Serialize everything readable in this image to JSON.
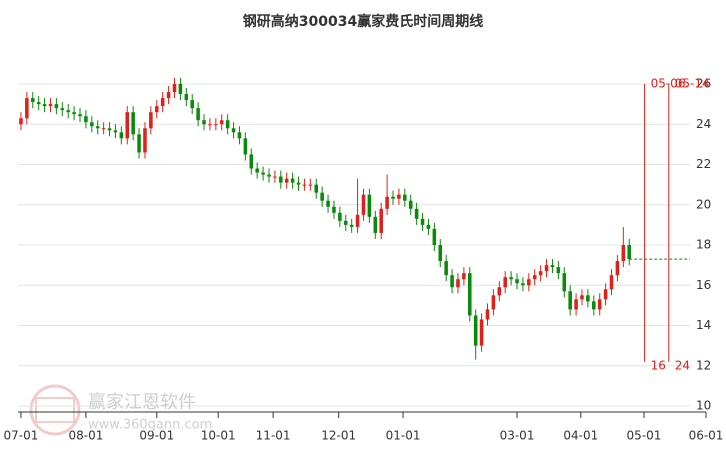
{
  "chart_data": {
    "type": "candlestick",
    "title": "钢研高纳300034赢家费氏时间周期线",
    "up_color": "#e0201a",
    "down_color": "#0a8a0a",
    "grid": true,
    "xlim": [
      -0.5,
      116
    ],
    "xticks": [
      {
        "value": 0,
        "label": "07-01"
      },
      {
        "value": 11,
        "label": "08-01"
      },
      {
        "value": 23,
        "label": "09-01"
      },
      {
        "value": 33.4,
        "label": "10-01"
      },
      {
        "value": 42.7,
        "label": "11-01"
      },
      {
        "value": 53.8,
        "label": "12-01"
      },
      {
        "value": 64.7,
        "label": "01-01"
      },
      {
        "value": 84,
        "label": "03-01"
      },
      {
        "value": 94.8,
        "label": "04-01"
      },
      {
        "value": 105.5,
        "label": "05-01"
      },
      {
        "value": 116,
        "label": "06-01"
      }
    ],
    "ylim": [
      10,
      26
    ],
    "yticks": [
      10,
      12,
      14,
      16,
      18,
      20,
      22,
      24,
      26
    ],
    "open": [
      24.0,
      24.3,
      25.3,
      25.1,
      25.0,
      24.9,
      25.0,
      24.8,
      24.7,
      24.6,
      24.5,
      24.4,
      24.1,
      23.9,
      23.8,
      23.8,
      23.7,
      23.6,
      23.3,
      24.6,
      23.5,
      22.6,
      23.8,
      24.6,
      24.9,
      25.3,
      25.6,
      26.0,
      25.5,
      25.2,
      24.8,
      24.2,
      24.0,
      24.0,
      24.0,
      24.2,
      23.8,
      23.6,
      23.3,
      22.5,
      21.8,
      21.6,
      21.5,
      21.4,
      21.4,
      21.1,
      21.3,
      21.1,
      21.0,
      21.0,
      21.0,
      20.6,
      20.2,
      19.9,
      19.6,
      19.2,
      19.0,
      18.9,
      19.5,
      20.5,
      19.4,
      18.6,
      19.8,
      20.4,
      20.3,
      20.5,
      20.2,
      19.8,
      19.3,
      19.0,
      18.8,
      18.0,
      17.2,
      16.5,
      15.9,
      16.3,
      16.6,
      14.5,
      13.0,
      14.3,
      14.8,
      15.5,
      15.9,
      16.4,
      16.3,
      16.1,
      16.0,
      16.3,
      16.5,
      16.7,
      17.0,
      16.9,
      16.6,
      15.7,
      14.8,
      15.3,
      15.5,
      15.2,
      14.8,
      15.3,
      15.8,
      16.5,
      17.2,
      18.0
    ],
    "high": [
      24.6,
      25.6,
      25.6,
      25.4,
      25.3,
      25.3,
      25.3,
      25.1,
      25.0,
      24.9,
      24.8,
      24.7,
      24.4,
      24.2,
      24.1,
      24.1,
      24.0,
      23.9,
      24.9,
      24.9,
      23.8,
      24.1,
      24.9,
      25.2,
      25.6,
      25.9,
      26.3,
      26.3,
      25.8,
      25.5,
      25.1,
      24.5,
      24.3,
      24.3,
      24.5,
      24.5,
      24.1,
      23.9,
      23.6,
      22.8,
      22.1,
      21.9,
      21.8,
      21.7,
      21.7,
      21.6,
      21.6,
      21.4,
      21.3,
      21.3,
      21.3,
      20.9,
      20.5,
      20.2,
      19.9,
      19.5,
      19.3,
      21.3,
      20.8,
      20.8,
      19.7,
      20.1,
      21.5,
      20.7,
      20.8,
      20.8,
      20.5,
      20.1,
      19.6,
      19.3,
      19.1,
      18.3,
      17.5,
      16.8,
      16.6,
      16.9,
      16.9,
      14.8,
      14.6,
      15.1,
      15.8,
      16.2,
      16.7,
      16.7,
      16.6,
      16.4,
      16.6,
      16.8,
      17.0,
      17.3,
      17.3,
      17.2,
      16.9,
      16.0,
      15.6,
      15.8,
      15.8,
      15.5,
      15.6,
      16.1,
      16.8,
      17.5,
      18.9,
      18.3
    ],
    "low": [
      23.7,
      24.0,
      24.8,
      24.7,
      24.6,
      24.6,
      24.5,
      24.4,
      24.3,
      24.2,
      24.1,
      23.8,
      23.6,
      23.5,
      23.5,
      23.4,
      23.3,
      23.0,
      23.0,
      23.2,
      22.3,
      22.3,
      23.5,
      24.3,
      24.6,
      25.0,
      25.3,
      25.2,
      24.9,
      24.5,
      23.9,
      23.7,
      23.7,
      23.7,
      23.7,
      23.5,
      23.3,
      23.0,
      22.2,
      21.5,
      21.3,
      21.2,
      21.1,
      21.1,
      20.8,
      20.8,
      20.8,
      20.7,
      20.7,
      20.7,
      20.3,
      19.9,
      19.6,
      19.3,
      18.9,
      18.7,
      18.6,
      18.6,
      19.2,
      19.1,
      18.3,
      18.3,
      19.5,
      20.0,
      20.0,
      19.9,
      19.5,
      19.0,
      18.7,
      18.5,
      17.7,
      16.9,
      16.2,
      15.6,
      15.6,
      16.0,
      14.2,
      12.3,
      12.7,
      14.0,
      14.5,
      15.2,
      15.6,
      16.0,
      15.8,
      15.7,
      15.7,
      16.0,
      16.2,
      16.4,
      16.6,
      16.3,
      15.4,
      14.5,
      14.5,
      15.0,
      14.9,
      14.5,
      14.5,
      15.0,
      15.5,
      16.2,
      16.9,
      17.0
    ],
    "close": [
      24.3,
      25.3,
      25.1,
      25.0,
      24.9,
      25.0,
      24.8,
      24.7,
      24.6,
      24.5,
      24.4,
      24.1,
      23.9,
      23.8,
      23.8,
      23.7,
      23.6,
      23.3,
      24.6,
      23.5,
      22.6,
      23.8,
      24.6,
      24.9,
      25.3,
      25.6,
      26.0,
      25.5,
      25.2,
      24.8,
      24.2,
      24.0,
      24.0,
      24.0,
      24.2,
      23.8,
      23.6,
      23.3,
      22.5,
      21.8,
      21.6,
      21.5,
      21.4,
      21.4,
      21.1,
      21.3,
      21.1,
      21.0,
      21.0,
      21.0,
      20.6,
      20.2,
      19.9,
      19.6,
      19.2,
      19.0,
      18.9,
      19.5,
      20.5,
      19.4,
      18.6,
      19.8,
      20.4,
      20.3,
      20.5,
      20.2,
      19.8,
      19.3,
      19.0,
      18.8,
      18.0,
      17.2,
      16.5,
      15.9,
      16.3,
      16.6,
      14.5,
      13.0,
      14.3,
      14.8,
      15.5,
      15.9,
      16.4,
      16.3,
      16.1,
      16.0,
      16.3,
      16.5,
      16.7,
      17.0,
      16.9,
      16.6,
      15.7,
      14.8,
      15.3,
      15.5,
      15.2,
      14.8,
      15.3,
      15.8,
      16.5,
      17.2,
      18.0,
      17.3
    ],
    "markers": [
      {
        "x": 105.6,
        "label": "05-06",
        "note": "16"
      },
      {
        "x": 109.7,
        "label": "05-14",
        "note": "24"
      }
    ],
    "marker_color": "#e0201a",
    "watermark": [
      "赢家江恩软件",
      "www.360gann.com"
    ]
  }
}
